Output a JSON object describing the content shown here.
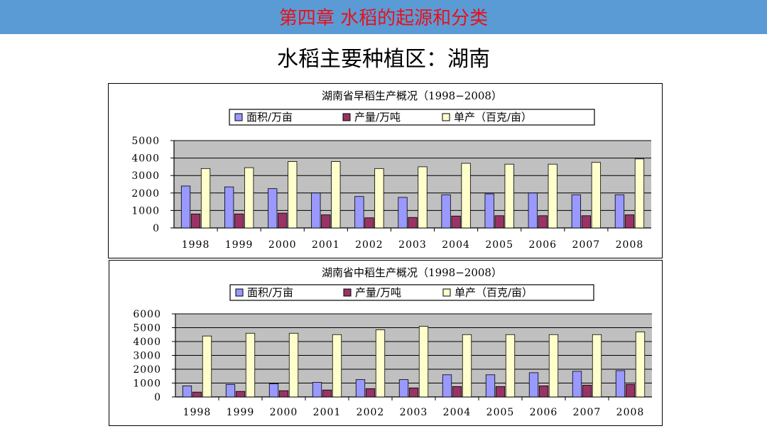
{
  "header": {
    "title": "第四章  水稻的起源和分类"
  },
  "subtitle": "水稻主要种植区：湖南",
  "colors": {
    "header_bg": "#5b9bd5",
    "header_text": "#e8101a",
    "area": "#9999ff",
    "yield": "#993366",
    "unit_yield": "#ffffcc",
    "plot_bg": "#c0c0c0"
  },
  "chart_data": [
    {
      "type": "bar",
      "title": "湖南省早稻生产概况（1998−2008）",
      "categories": [
        "1998",
        "1999",
        "2000",
        "2001",
        "2002",
        "2003",
        "2004",
        "2005",
        "2006",
        "2007",
        "2008"
      ],
      "series": [
        {
          "name": "面积/万亩",
          "color": "#9999ff",
          "values": [
            2400,
            2350,
            2250,
            2000,
            1800,
            1750,
            1900,
            1950,
            2000,
            1900,
            1900
          ]
        },
        {
          "name": "产量/万吨",
          "color": "#993366",
          "values": [
            800,
            800,
            850,
            750,
            580,
            600,
            680,
            700,
            700,
            700,
            750
          ]
        },
        {
          "name": "单产（百克/亩）",
          "color": "#ffffcc",
          "values": [
            3400,
            3450,
            3800,
            3800,
            3400,
            3500,
            3700,
            3650,
            3650,
            3750,
            3950
          ]
        }
      ],
      "yticks": [
        "0",
        "1000",
        "2000",
        "3000",
        "4000",
        "5000"
      ],
      "ylim": [
        0,
        5000
      ],
      "grid": true,
      "legend": "top"
    },
    {
      "type": "bar",
      "title": "湖南省中稻生产概况（1998−2008）",
      "categories": [
        "1998",
        "1999",
        "2000",
        "2001",
        "2002",
        "2003",
        "2004",
        "2005",
        "2006",
        "2007",
        "2008"
      ],
      "series": [
        {
          "name": "面积/万亩",
          "color": "#9999ff",
          "values": [
            800,
            900,
            950,
            1050,
            1250,
            1250,
            1600,
            1600,
            1750,
            1850,
            1900
          ]
        },
        {
          "name": "产量/万吨",
          "color": "#993366",
          "values": [
            350,
            400,
            450,
            500,
            600,
            650,
            750,
            750,
            800,
            850,
            900
          ]
        },
        {
          "name": "单产（百克/亩）",
          "color": "#ffffcc",
          "values": [
            4400,
            4600,
            4600,
            4500,
            4850,
            5100,
            4500,
            4500,
            4500,
            4500,
            4700
          ]
        }
      ],
      "yticks": [
        "0",
        "1000",
        "2000",
        "3000",
        "4000",
        "5000",
        "6000"
      ],
      "ylim": [
        0,
        6000
      ],
      "grid": true,
      "legend": "top"
    }
  ]
}
